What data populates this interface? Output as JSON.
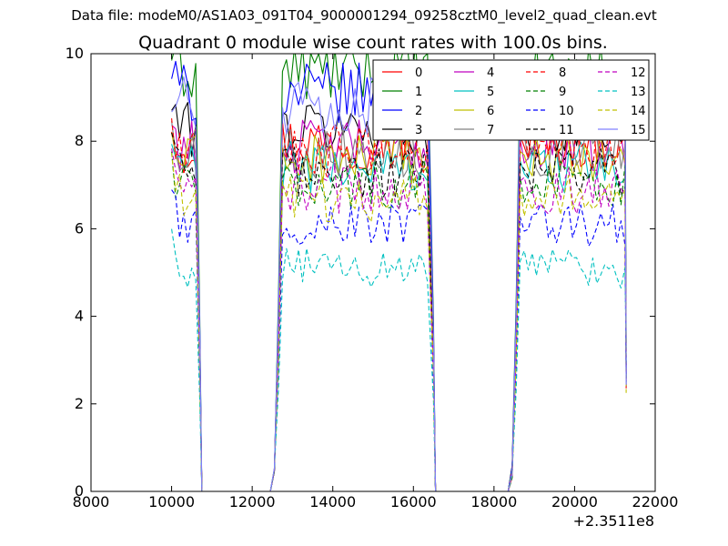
{
  "suptitle": "Data file: modeM0/AS1A03_091T04_9000001294_09258cztM0_level2_quad_clean.evt",
  "chart_data": {
    "type": "line",
    "title": "Quadrant 0 module wise count rates with 100.0s bins.",
    "xlabel": "",
    "ylabel": "",
    "x_offset_label": "+2.3511e8",
    "xlim": [
      8000,
      22000
    ],
    "ylim": [
      0,
      10
    ],
    "xticks": [
      "8000",
      "10000",
      "12000",
      "14000",
      "16000",
      "18000",
      "20000",
      "22000"
    ],
    "yticks": [
      "0",
      "2",
      "4",
      "6",
      "8",
      "10"
    ],
    "legend_position": "top-right",
    "segments": [
      [
        10000,
        10600
      ],
      [
        12750,
        16400
      ],
      [
        18650,
        21250
      ]
    ],
    "x_bin": 100,
    "series": [
      {
        "name": "0",
        "color": "#ff0000",
        "dash": "solid",
        "level": 8.0
      },
      {
        "name": "1",
        "color": "#008000",
        "dash": "solid",
        "level": 9.6
      },
      {
        "name": "2",
        "color": "#0000ff",
        "dash": "solid",
        "level": 9.1
      },
      {
        "name": "3",
        "color": "#000000",
        "dash": "solid",
        "level": 8.3
      },
      {
        "name": "4",
        "color": "#c000c0",
        "dash": "solid",
        "level": 7.9
      },
      {
        "name": "5",
        "color": "#00c0c0",
        "dash": "solid",
        "level": 7.4
      },
      {
        "name": "6",
        "color": "#c0c000",
        "dash": "solid",
        "level": 7.6
      },
      {
        "name": "7",
        "color": "#808080",
        "dash": "solid",
        "level": 7.8
      },
      {
        "name": "8",
        "color": "#ff0000",
        "dash": "dashed",
        "level": 7.8
      },
      {
        "name": "9",
        "color": "#008000",
        "dash": "dashed",
        "level": 7.0
      },
      {
        "name": "10",
        "color": "#0000ff",
        "dash": "dashed",
        "level": 6.1
      },
      {
        "name": "11",
        "color": "#000000",
        "dash": "dashed",
        "level": 7.3
      },
      {
        "name": "12",
        "color": "#c000c0",
        "dash": "dashed",
        "level": 6.9
      },
      {
        "name": "13",
        "color": "#00c0c0",
        "dash": "dashed",
        "level": 5.1
      },
      {
        "name": "14",
        "color": "#c0c000",
        "dash": "dashed",
        "level": 6.7
      },
      {
        "name": "15",
        "color": "#8080ff",
        "dash": "solid",
        "level": 8.8
      }
    ]
  }
}
